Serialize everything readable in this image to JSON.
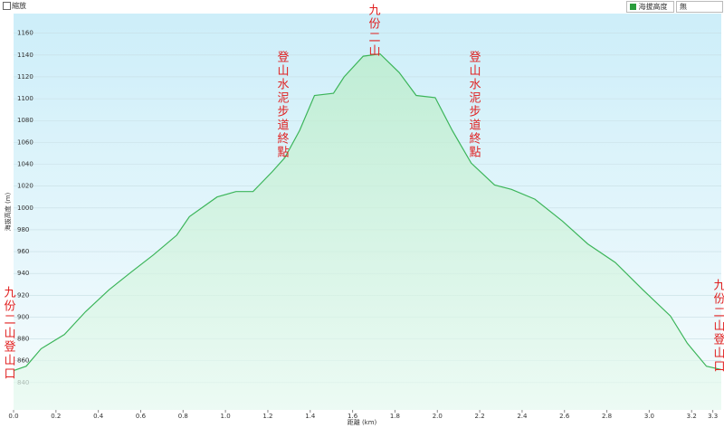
{
  "chart_data": {
    "type": "area",
    "x_label": "距離 (km)",
    "y_label": "海拔高度 (m)",
    "x": [
      0,
      0.06,
      0.13,
      0.24,
      0.34,
      0.45,
      0.56,
      0.66,
      0.77,
      0.83,
      0.96,
      1.05,
      1.13,
      1.22,
      1.28,
      1.35,
      1.42,
      1.51,
      1.56,
      1.65,
      1.73,
      1.82,
      1.9,
      1.99,
      2.07,
      2.16,
      2.27,
      2.35,
      2.46,
      2.59,
      2.71,
      2.84,
      2.97,
      3.1,
      3.18,
      3.27,
      3.34
    ],
    "series": [
      {
        "name": "海拔高度",
        "color": "#3cb55a",
        "values": [
          851,
          855,
          871,
          884,
          905,
          925,
          942,
          957,
          975,
          992,
          1010,
          1015,
          1015,
          1033,
          1046,
          1071,
          1103,
          1105,
          1120,
          1139,
          1141,
          1124,
          1103,
          1101,
          1071,
          1041,
          1021,
          1017,
          1008,
          988,
          967,
          950,
          925,
          901,
          876,
          855,
          852
        ]
      }
    ],
    "xlim": [
      0,
      3.34
    ],
    "ylim": [
      815,
      1178
    ],
    "xticks": [
      {
        "value": 0,
        "label": "0.0"
      },
      0.2,
      0.4,
      0.6,
      0.8,
      {
        "value": 1,
        "label": "1.0"
      },
      1.2,
      1.4,
      1.6,
      1.8,
      {
        "value": 2,
        "label": "2.0"
      },
      2.2,
      2.4,
      2.6,
      2.8,
      {
        "value": 3,
        "label": "3.0"
      },
      3.2,
      3.3
    ],
    "yticks": [
      840,
      860,
      880,
      900,
      920,
      940,
      960,
      980,
      1000,
      1020,
      1040,
      1060,
      1080,
      1100,
      1120,
      1140,
      1160
    ],
    "grid": true,
    "legend": "top-right",
    "annotations": [
      "九份二山登山口",
      "登山水泥步道終點",
      "九份二山",
      "登山水泥步道終點",
      "九份二山登山口"
    ],
    "controls": {
      "zoom": "縮放",
      "compare": "無"
    }
  }
}
